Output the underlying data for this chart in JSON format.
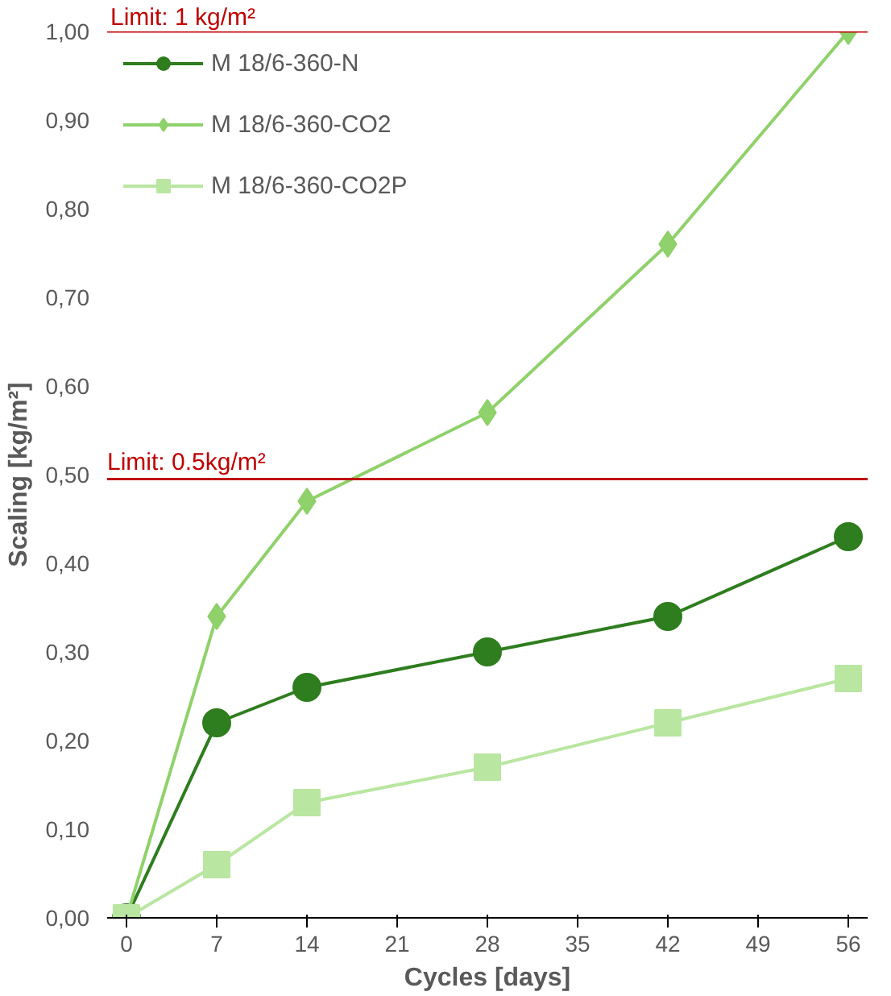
{
  "chart_data": {
    "type": "line",
    "xlabel": "Cycles [days]",
    "ylabel": "Scaling [kg/m²]",
    "x": [
      0,
      7,
      14,
      28,
      42,
      56
    ],
    "series": [
      {
        "name": "M 18/6-360-N",
        "color": "#2e7d1e",
        "marker": "circle",
        "values": [
          0,
          0.22,
          0.26,
          0.3,
          0.34,
          0.43
        ]
      },
      {
        "name": "M 18/6-360-CO2",
        "color": "#8fd16a",
        "marker": "diamond",
        "values": [
          0,
          0.34,
          0.47,
          0.57,
          0.76,
          1.0
        ]
      },
      {
        "name": "M 18/6-360-CO2P",
        "color": "#b9e6a0",
        "marker": "square",
        "values": [
          0,
          0.06,
          0.13,
          0.17,
          0.22,
          0.27
        ]
      }
    ],
    "xlim": [
      -1.5,
      57.5
    ],
    "xticks": [
      0,
      7,
      14,
      21,
      28,
      35,
      42,
      49,
      56
    ],
    "ylim": [
      0,
      1.0
    ],
    "yticks": [
      {
        "value": 0,
        "label": "0,00"
      },
      {
        "value": 0.1,
        "label": "0,10"
      },
      {
        "value": 0.2,
        "label": "0,20"
      },
      {
        "value": 0.3,
        "label": "0,30"
      },
      {
        "value": 0.4,
        "label": "0,40"
      },
      {
        "value": 0.5,
        "label": "0,50"
      },
      {
        "value": 0.6,
        "label": "0,60"
      },
      {
        "value": 0.7,
        "label": "0,70"
      },
      {
        "value": 0.8,
        "label": "0,80"
      },
      {
        "value": 0.9,
        "label": "0,90"
      },
      {
        "value": 1.0,
        "label": "1,00"
      }
    ],
    "ref_lines": [
      {
        "axis": "y",
        "value": 1.0,
        "label": "Limit: 1 kg/m²",
        "color": "#c00000"
      },
      {
        "axis": "y",
        "value": 0.495,
        "label": "Limit: 0.5kg/m²",
        "color": "#c00000"
      }
    ],
    "grid": false,
    "legend": "top left"
  }
}
